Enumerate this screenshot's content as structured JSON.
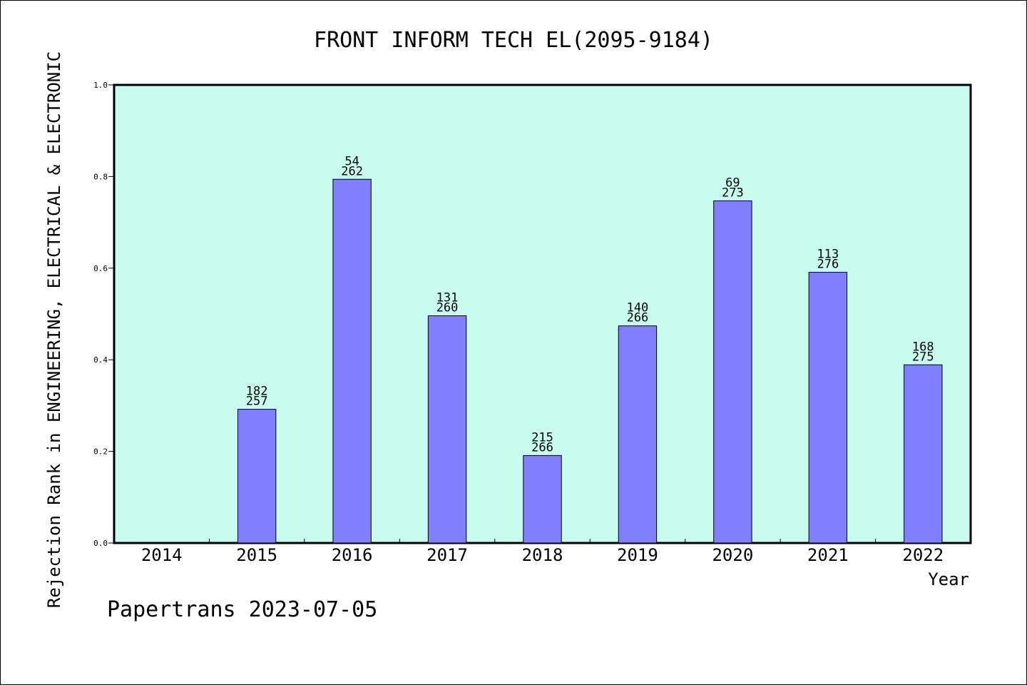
{
  "chart_data": {
    "type": "bar",
    "title": "FRONT INFORM TECH EL(2095-9184)",
    "xlabel": "Year",
    "ylabel": "Rejection Rank in ENGINEERING, ELECTRICAL & ELECTRONIC",
    "categories": [
      "2014",
      "2015",
      "2016",
      "2017",
      "2018",
      "2019",
      "2020",
      "2021",
      "2022"
    ],
    "values": [
      null,
      0.292,
      0.794,
      0.496,
      0.191,
      0.474,
      0.747,
      0.591,
      0.389
    ],
    "label_top": [
      "",
      "182",
      "54",
      "131",
      "215",
      "140",
      "69",
      "113",
      "168"
    ],
    "label_bottom": [
      "",
      "257",
      "262",
      "260",
      "266",
      "266",
      "273",
      "276",
      "275"
    ],
    "ylim": [
      0,
      1.0
    ],
    "yticks": [
      "0.0",
      "0.2",
      "0.4",
      "0.6",
      "0.8",
      "1.0"
    ],
    "grid": false,
    "colors": {
      "plot_background": "#c8fcee",
      "bar": "#8080ff",
      "bar_edge": "#000000"
    }
  },
  "footer": {
    "watermark": "Papertrans 2023-07-05"
  }
}
